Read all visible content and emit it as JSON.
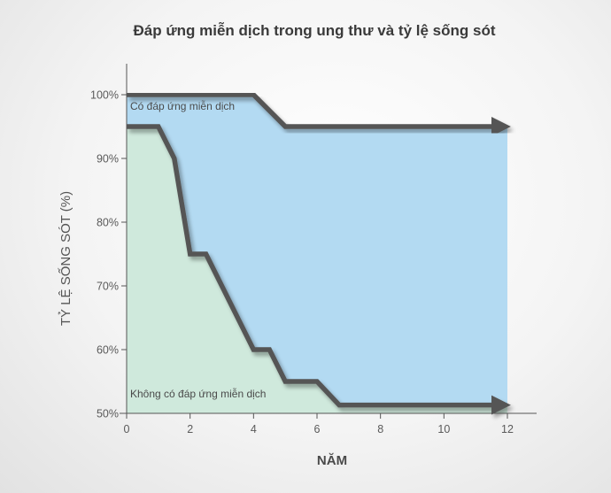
{
  "chart_data": {
    "type": "area",
    "title": "Đáp ứng miễn dịch trong ung thư và tỷ lệ sống sót",
    "xlabel": "NĂM",
    "ylabel": "TỶ LỆ SỐNG SÓT (%)",
    "xlim": [
      0,
      12
    ],
    "ylim": [
      50,
      100
    ],
    "x_ticks": [
      "0",
      "2",
      "4",
      "6",
      "8",
      "10",
      "12"
    ],
    "y_ticks": [
      "50%",
      "60%",
      "70%",
      "80%",
      "90%",
      "100%"
    ],
    "x_tick_values": [
      0,
      2,
      4,
      6,
      8,
      10,
      12
    ],
    "y_tick_values": [
      50,
      60,
      70,
      80,
      90,
      100
    ],
    "grid": false,
    "series": [
      {
        "name": "Có đáp ứng miễn dịch",
        "color": "#b3daf2",
        "x": [
          0,
          4,
          5,
          12
        ],
        "y": [
          100,
          100,
          95,
          95
        ]
      },
      {
        "name": "Không có đáp ứng miễn dịch",
        "color": "#cfe9dc",
        "x": [
          0,
          1,
          1.5,
          2,
          2.5,
          4,
          4.5,
          5,
          6,
          6.7,
          12
        ],
        "y": [
          95,
          95,
          90,
          75,
          75,
          60,
          60,
          55,
          55,
          51.3,
          51.3
        ]
      }
    ]
  }
}
